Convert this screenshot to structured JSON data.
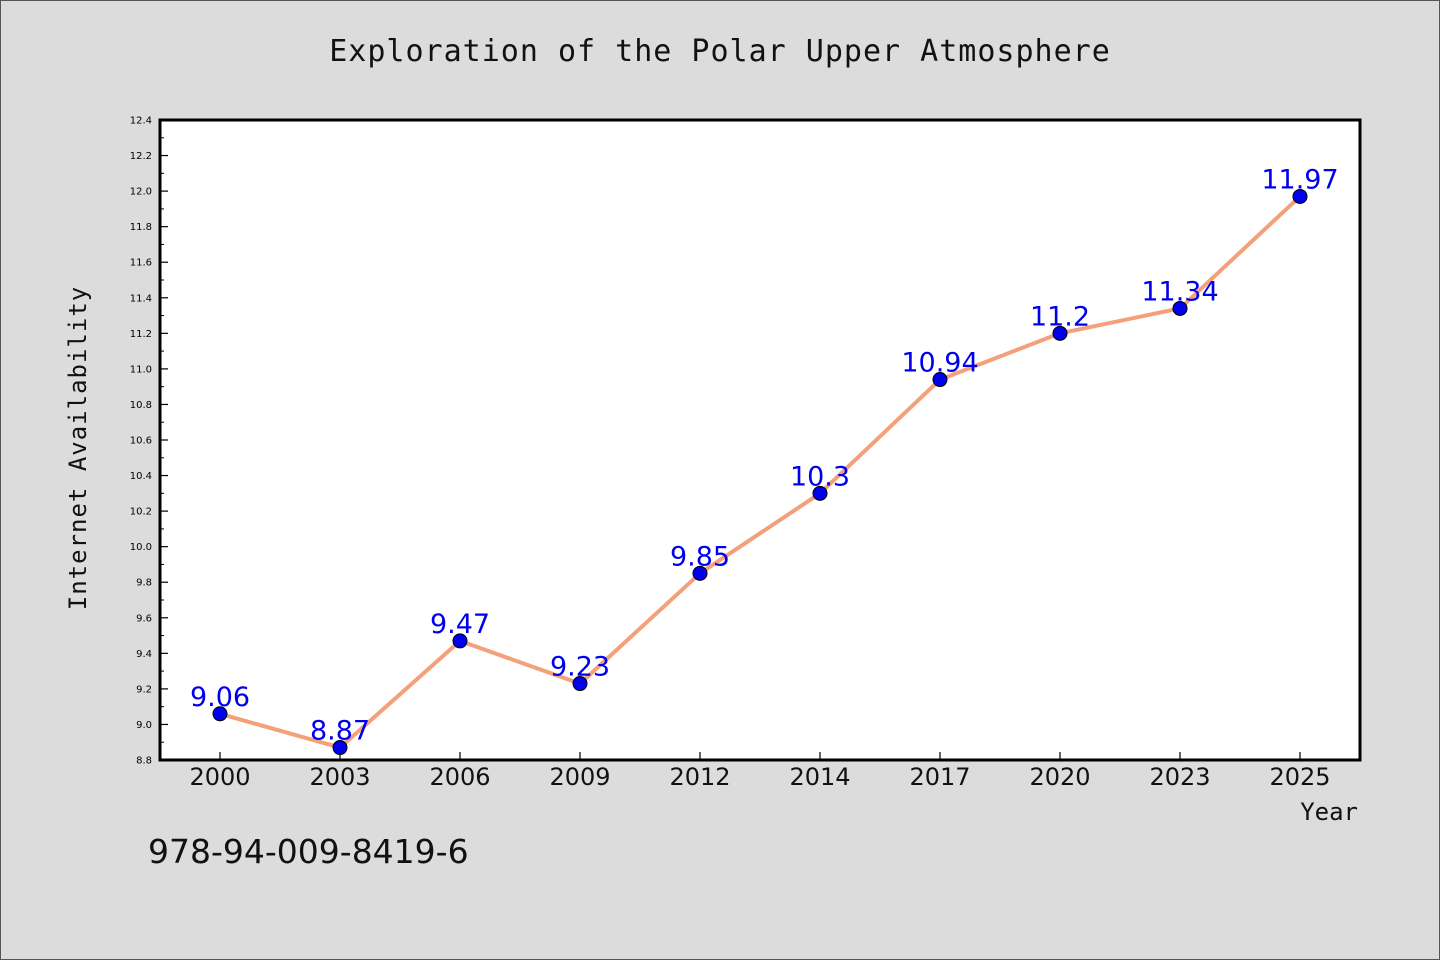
{
  "chart_data": {
    "type": "line",
    "title": "Exploration of the Polar Upper Atmosphere",
    "xlabel": "Year",
    "ylabel": "Internet Availability",
    "categories": [
      "2000",
      "2003",
      "2006",
      "2009",
      "2012",
      "2014",
      "2017",
      "2020",
      "2023",
      "2025"
    ],
    "series": [
      {
        "values": [
          9.06,
          8.87,
          9.47,
          9.23,
          9.85,
          10.3,
          10.94,
          11.2,
          11.34,
          11.97
        ]
      }
    ],
    "data_labels": [
      "9.06",
      "8.87",
      "9.47",
      "9.23",
      "9.85",
      "10.3",
      "10.94",
      "11.2",
      "11.34",
      "11.97"
    ],
    "ylim": [
      8.8,
      12.4
    ],
    "yticks": [
      "8.8",
      "9.0",
      "9.2",
      "9.4",
      "9.6",
      "9.8",
      "10.0",
      "10.2",
      "10.4",
      "10.6",
      "10.8",
      "11.0",
      "11.2",
      "11.4",
      "11.6",
      "11.8",
      "12.0",
      "12.2",
      "12.4"
    ],
    "grid": false,
    "line_color": "#f4a07a",
    "marker_color": "#0000ee",
    "label_color": "#0000ee"
  },
  "footer": {
    "isbn": "978-94-009-8419-6"
  },
  "colors": {
    "background": "#dcdcdc",
    "plot_background": "#ffffff"
  }
}
